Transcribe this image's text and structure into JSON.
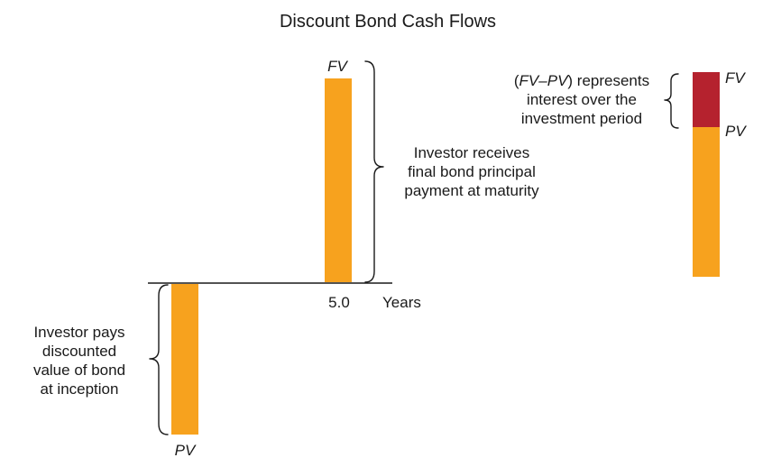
{
  "title": "Discount Bond Cash Flows",
  "colors": {
    "bar": "#F7A21E",
    "interest": "#B5222E",
    "axis": "#1a1a1a"
  },
  "timeline": {
    "tick_label": "5.0",
    "axis_label": "Years"
  },
  "outflow": {
    "bar_label": "PV",
    "note": [
      "Investor pays",
      "discounted",
      "value of bond",
      "at inception"
    ]
  },
  "inflow": {
    "bar_label": "FV",
    "note": [
      "Investor receives",
      "final bond principal",
      "payment at maturity"
    ]
  },
  "stacked": {
    "top_label": "FV",
    "bottom_label": "PV",
    "note_prefix": "(",
    "note_italic": "FV–PV",
    "note_suffix": ") represents",
    "note_rest": [
      "interest over the",
      "investment period"
    ]
  }
}
